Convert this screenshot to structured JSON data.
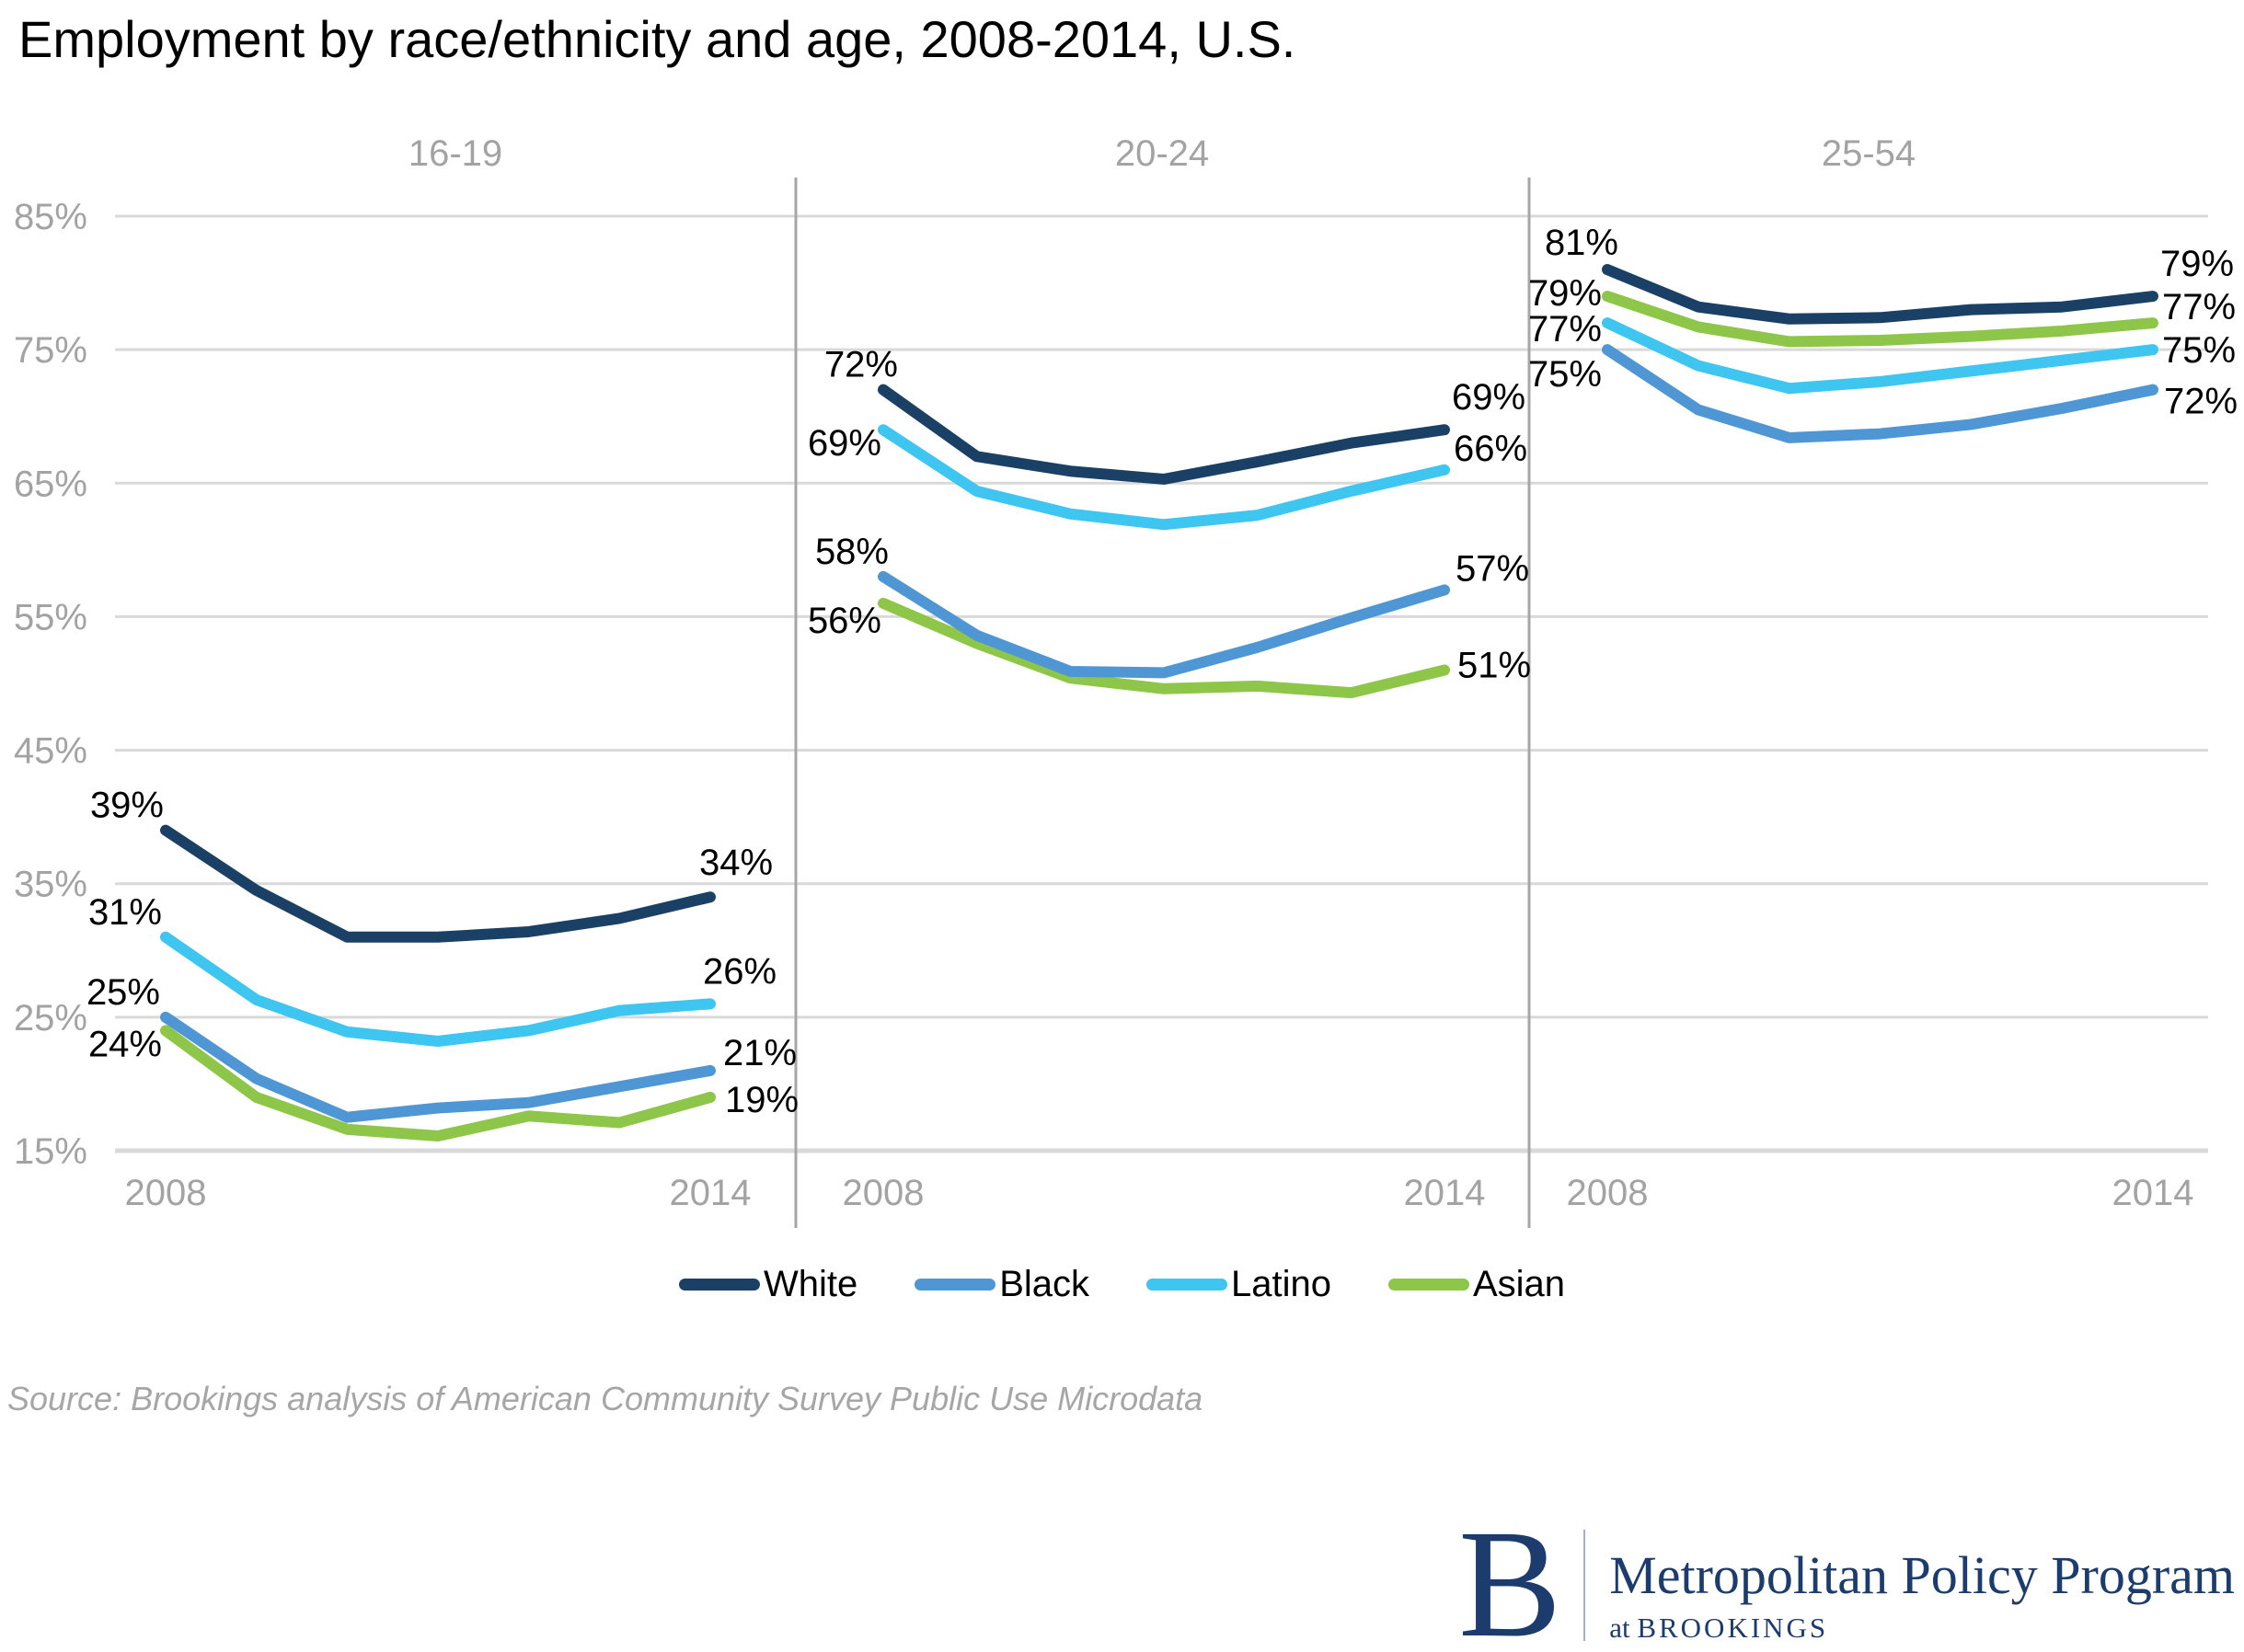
{
  "title": "Employment by race/ethnicity and age, 2008-2014, U.S.",
  "source_note": "Source: Brookings analysis of American Community Survey Public Use Microdata",
  "legend": {
    "items": [
      {
        "label": "White",
        "color": "#1a4066"
      },
      {
        "label": "Black",
        "color": "#4f97d4"
      },
      {
        "label": "Latino",
        "color": "#3ec5f0"
      },
      {
        "label": "Asian",
        "color": "#8dc648"
      }
    ]
  },
  "logo": {
    "letter": "B",
    "program": "Metropolitan Policy Program",
    "tagline_prefix": "at",
    "tagline_org": "BROOKINGS"
  },
  "styles": {
    "grid_color": "#d9d9d9",
    "divider_color": "#a6a6a6",
    "axis_text_color": "#a3a3a3",
    "data_label_color": "#000000",
    "navy": "#1c3c6e"
  },
  "chart_data": {
    "type": "line",
    "title": "Employment by race/ethnicity and age, 2008-2014, U.S.",
    "x": [
      2008,
      2009,
      2010,
      2011,
      2012,
      2013,
      2014
    ],
    "xticks": [
      "2008",
      "2014"
    ],
    "yticks": [
      85,
      75,
      65,
      55,
      45,
      35,
      25,
      15
    ],
    "ytick_suffix": "%",
    "ylim": [
      15,
      85
    ],
    "grid": "horizontal",
    "legend_position": "bottom",
    "panels": [
      {
        "label": "16-19",
        "series": [
          {
            "name": "White",
            "color": "#1a4066",
            "values": [
              39,
              34.5,
              31,
              31,
              31.4,
              32.4,
              34
            ],
            "label_start": {
              "text": "39%",
              "anchor": "end",
              "dx": -2,
              "dy": -14
            },
            "label_end": {
              "text": "34%",
              "anchor": "middle",
              "dx": 28,
              "dy": -24
            }
          },
          {
            "name": "Black",
            "color": "#4f97d4",
            "values": [
              25,
              20.4,
              17.5,
              18.2,
              18.6,
              19.8,
              21
            ],
            "label_start": {
              "text": "25%",
              "anchor": "end",
              "dx": -6,
              "dy": -14
            },
            "label_end": {
              "text": "21%",
              "anchor": "start",
              "dx": 14,
              "dy": -6
            }
          },
          {
            "name": "Latino",
            "color": "#3ec5f0",
            "values": [
              31,
              26.3,
              23.9,
              23.2,
              24,
              25.5,
              26
            ],
            "label_start": {
              "text": "31%",
              "anchor": "end",
              "dx": -4,
              "dy": -14
            },
            "label_end": {
              "text": "26%",
              "anchor": "middle",
              "dx": 32,
              "dy": -22
            }
          },
          {
            "name": "Asian",
            "color": "#8dc648",
            "values": [
              24,
              19,
              16.6,
              16.1,
              17.6,
              17.1,
              19
            ],
            "label_start": {
              "text": "24%",
              "anchor": "end",
              "dx": -4,
              "dy": 28
            },
            "label_end": {
              "text": "19%",
              "anchor": "start",
              "dx": 16,
              "dy": 16
            }
          }
        ]
      },
      {
        "label": "20-24",
        "series": [
          {
            "name": "White",
            "color": "#1a4066",
            "values": [
              72,
              67,
              65.9,
              65.3,
              66.6,
              68,
              69
            ],
            "label_start": {
              "text": "72%",
              "anchor": "end",
              "dx": 16,
              "dy": -14
            },
            "label_end": {
              "text": "69%",
              "anchor": "start",
              "dx": 8,
              "dy": -22
            }
          },
          {
            "name": "Black",
            "color": "#4f97d4",
            "values": [
              58,
              53.6,
              50.9,
              50.8,
              52.7,
              54.9,
              57
            ],
            "label_start": {
              "text": "58%",
              "anchor": "end",
              "dx": 6,
              "dy": -14
            },
            "label_end": {
              "text": "57%",
              "anchor": "start",
              "dx": 12,
              "dy": -10
            }
          },
          {
            "name": "Latino",
            "color": "#3ec5f0",
            "values": [
              69,
              64.4,
              62.7,
              61.9,
              62.6,
              64.4,
              66
            ],
            "label_start": {
              "text": "69%",
              "anchor": "end",
              "dx": -2,
              "dy": 28
            },
            "label_end": {
              "text": "66%",
              "anchor": "start",
              "dx": 10,
              "dy": -10
            }
          },
          {
            "name": "Asian",
            "color": "#8dc648",
            "values": [
              56,
              53,
              50.4,
              49.6,
              49.8,
              49.3,
              51
            ],
            "label_start": {
              "text": "56%",
              "anchor": "end",
              "dx": -2,
              "dy": 32
            },
            "label_end": {
              "text": "51%",
              "anchor": "start",
              "dx": 14,
              "dy": 8
            }
          }
        ]
      },
      {
        "label": "25-54",
        "series": [
          {
            "name": "White",
            "color": "#1a4066",
            "values": [
              81,
              78.2,
              77.3,
              77.4,
              78,
              78.2,
              79
            ],
            "label_start": {
              "text": "81%",
              "anchor": "end",
              "dx": 12,
              "dy": -16
            },
            "label_end": {
              "text": "79%",
              "anchor": "start",
              "dx": 8,
              "dy": -22
            }
          },
          {
            "name": "Black",
            "color": "#4f97d4",
            "values": [
              75,
              70.5,
              68.4,
              68.7,
              69.4,
              70.6,
              72
            ],
            "label_start": {
              "text": "75%",
              "anchor": "end",
              "dx": -6,
              "dy": 40
            },
            "label_end": {
              "text": "72%",
              "anchor": "start",
              "dx": 12,
              "dy": 26
            }
          },
          {
            "name": "Latino",
            "color": "#3ec5f0",
            "values": [
              77,
              73.8,
              72.1,
              72.6,
              73.4,
              74.2,
              75
            ],
            "label_start": {
              "text": "77%",
              "anchor": "end",
              "dx": -6,
              "dy": 20
            },
            "label_end": {
              "text": "75%",
              "anchor": "start",
              "dx": 10,
              "dy": 14
            }
          },
          {
            "name": "Asian",
            "color": "#8dc648",
            "values": [
              79,
              76.7,
              75.6,
              75.7,
              76,
              76.4,
              77
            ],
            "label_start": {
              "text": "79%",
              "anchor": "end",
              "dx": -6,
              "dy": 10
            },
            "label_end": {
              "text": "77%",
              "anchor": "start",
              "dx": 10,
              "dy": -4
            }
          }
        ]
      }
    ]
  }
}
